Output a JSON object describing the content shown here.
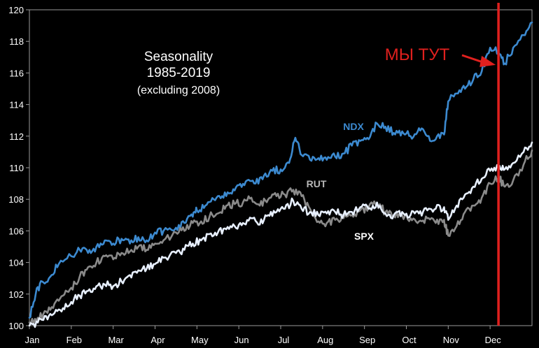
{
  "chart_data": {
    "type": "line",
    "title": "Seasonality",
    "subtitle": "1985-2019",
    "subtitle2": "(excluding 2008)",
    "xlabel": "",
    "ylabel": "",
    "categories": [
      "Jan",
      "Feb",
      "Mar",
      "Apr",
      "May",
      "Jun",
      "Jul",
      "Aug",
      "Sep",
      "Oct",
      "Nov",
      "Dec"
    ],
    "ylim": [
      100,
      120
    ],
    "yticks": [
      100,
      102,
      104,
      106,
      108,
      110,
      112,
      114,
      116,
      118,
      120
    ],
    "grid": false,
    "legend": "none",
    "series": [
      {
        "name": "NDX",
        "color": "#3c8ad0",
        "points": [
          [
            0.0,
            100.5
          ],
          [
            0.15,
            102.0
          ],
          [
            0.3,
            102.8
          ],
          [
            0.5,
            103.1
          ],
          [
            0.7,
            103.9
          ],
          [
            1.0,
            104.4
          ],
          [
            1.2,
            104.8
          ],
          [
            1.4,
            104.6
          ],
          [
            1.6,
            105.0
          ],
          [
            1.8,
            105.4
          ],
          [
            2.0,
            105.2
          ],
          [
            2.2,
            105.5
          ],
          [
            2.4,
            105.2
          ],
          [
            2.6,
            105.6
          ],
          [
            2.8,
            105.4
          ],
          [
            3.0,
            105.9
          ],
          [
            3.2,
            106.0
          ],
          [
            3.5,
            106.2
          ],
          [
            3.7,
            106.5
          ],
          [
            3.9,
            106.9
          ],
          [
            4.0,
            107.3
          ],
          [
            4.2,
            107.6
          ],
          [
            4.4,
            108.0
          ],
          [
            4.6,
            108.2
          ],
          [
            4.8,
            108.4
          ],
          [
            5.0,
            108.9
          ],
          [
            5.2,
            109.2
          ],
          [
            5.4,
            109.0
          ],
          [
            5.6,
            109.5
          ],
          [
            5.8,
            109.8
          ],
          [
            6.0,
            109.9
          ],
          [
            6.2,
            110.3
          ],
          [
            6.35,
            111.9
          ],
          [
            6.5,
            110.8
          ],
          [
            6.7,
            110.5
          ],
          [
            6.9,
            110.6
          ],
          [
            7.1,
            110.5
          ],
          [
            7.3,
            110.7
          ],
          [
            7.5,
            110.9
          ],
          [
            7.7,
            111.4
          ],
          [
            7.9,
            111.7
          ],
          [
            8.1,
            111.8
          ],
          [
            8.3,
            112.8
          ],
          [
            8.5,
            112.6
          ],
          [
            8.7,
            112.2
          ],
          [
            8.9,
            112.3
          ],
          [
            9.1,
            112.0
          ],
          [
            9.3,
            112.5
          ],
          [
            9.5,
            112.0
          ],
          [
            9.7,
            111.8
          ],
          [
            9.9,
            112.1
          ],
          [
            10.0,
            114.2
          ],
          [
            10.2,
            114.7
          ],
          [
            10.4,
            115.0
          ],
          [
            10.6,
            115.6
          ],
          [
            10.8,
            116.1
          ],
          [
            11.0,
            117.6
          ],
          [
            11.2,
            117.3
          ],
          [
            11.35,
            116.6
          ],
          [
            11.55,
            117.6
          ],
          [
            11.8,
            118.4
          ],
          [
            12.0,
            119.2
          ]
        ]
      },
      {
        "name": "RUT",
        "color": "#8a8a8a",
        "points": [
          [
            0.0,
            100.2
          ],
          [
            0.2,
            100.5
          ],
          [
            0.4,
            100.9
          ],
          [
            0.6,
            101.4
          ],
          [
            0.8,
            101.9
          ],
          [
            1.0,
            102.4
          ],
          [
            1.2,
            103.1
          ],
          [
            1.4,
            103.7
          ],
          [
            1.6,
            104.0
          ],
          [
            1.8,
            104.4
          ],
          [
            2.0,
            104.2
          ],
          [
            2.2,
            104.6
          ],
          [
            2.4,
            104.7
          ],
          [
            2.6,
            105.0
          ],
          [
            2.8,
            104.8
          ],
          [
            3.0,
            105.2
          ],
          [
            3.2,
            105.4
          ],
          [
            3.5,
            105.9
          ],
          [
            3.7,
            106.0
          ],
          [
            3.9,
            106.5
          ],
          [
            4.1,
            106.6
          ],
          [
            4.3,
            106.9
          ],
          [
            4.5,
            107.1
          ],
          [
            4.7,
            107.6
          ],
          [
            4.9,
            107.7
          ],
          [
            5.1,
            107.8
          ],
          [
            5.3,
            108.1
          ],
          [
            5.5,
            107.6
          ],
          [
            5.7,
            108.0
          ],
          [
            5.9,
            108.2
          ],
          [
            6.1,
            108.3
          ],
          [
            6.3,
            108.6
          ],
          [
            6.5,
            108.2
          ],
          [
            6.7,
            107.4
          ],
          [
            6.9,
            106.6
          ],
          [
            7.1,
            106.5
          ],
          [
            7.3,
            106.7
          ],
          [
            7.5,
            106.8
          ],
          [
            7.7,
            107.0
          ],
          [
            7.9,
            107.3
          ],
          [
            8.1,
            107.5
          ],
          [
            8.3,
            107.7
          ],
          [
            8.5,
            107.2
          ],
          [
            8.7,
            107.0
          ],
          [
            8.9,
            107.0
          ],
          [
            9.1,
            106.8
          ],
          [
            9.3,
            106.6
          ],
          [
            9.5,
            106.8
          ],
          [
            9.7,
            106.5
          ],
          [
            9.9,
            106.7
          ],
          [
            10.0,
            105.7
          ],
          [
            10.2,
            106.3
          ],
          [
            10.4,
            107.2
          ],
          [
            10.6,
            107.6
          ],
          [
            10.8,
            108.1
          ],
          [
            11.0,
            109.0
          ],
          [
            11.2,
            109.4
          ],
          [
            11.35,
            108.8
          ],
          [
            11.55,
            109.2
          ],
          [
            11.8,
            110.2
          ],
          [
            12.0,
            111.1
          ]
        ]
      },
      {
        "name": "SPX",
        "color": "#e8f0ff",
        "points": [
          [
            0.0,
            100.0
          ],
          [
            0.2,
            100.2
          ],
          [
            0.4,
            100.6
          ],
          [
            0.6,
            100.8
          ],
          [
            0.8,
            101.1
          ],
          [
            1.0,
            101.5
          ],
          [
            1.2,
            101.9
          ],
          [
            1.4,
            102.2
          ],
          [
            1.6,
            102.5
          ],
          [
            1.8,
            102.6
          ],
          [
            2.0,
            102.5
          ],
          [
            2.2,
            102.8
          ],
          [
            2.4,
            103.2
          ],
          [
            2.6,
            103.5
          ],
          [
            2.8,
            103.6
          ],
          [
            3.0,
            103.9
          ],
          [
            3.2,
            104.3
          ],
          [
            3.5,
            104.6
          ],
          [
            3.7,
            104.8
          ],
          [
            3.9,
            105.2
          ],
          [
            4.1,
            105.4
          ],
          [
            4.3,
            105.8
          ],
          [
            4.5,
            105.9
          ],
          [
            4.7,
            106.1
          ],
          [
            4.9,
            106.3
          ],
          [
            5.1,
            106.5
          ],
          [
            5.3,
            106.8
          ],
          [
            5.5,
            106.4
          ],
          [
            5.7,
            107.0
          ],
          [
            5.9,
            107.2
          ],
          [
            6.1,
            107.4
          ],
          [
            6.3,
            107.9
          ],
          [
            6.5,
            107.4
          ],
          [
            6.7,
            107.2
          ],
          [
            6.9,
            107.0
          ],
          [
            7.1,
            107.1
          ],
          [
            7.3,
            107.2
          ],
          [
            7.5,
            107.0
          ],
          [
            7.7,
            107.2
          ],
          [
            7.9,
            107.5
          ],
          [
            8.1,
            107.4
          ],
          [
            8.3,
            107.8
          ],
          [
            8.5,
            107.1
          ],
          [
            8.7,
            107.0
          ],
          [
            8.9,
            107.2
          ],
          [
            9.1,
            107.0
          ],
          [
            9.3,
            107.1
          ],
          [
            9.5,
            107.3
          ],
          [
            9.7,
            107.4
          ],
          [
            9.9,
            107.5
          ],
          [
            10.0,
            106.7
          ],
          [
            10.2,
            107.6
          ],
          [
            10.4,
            108.3
          ],
          [
            10.6,
            108.8
          ],
          [
            10.8,
            109.3
          ],
          [
            11.0,
            109.8
          ],
          [
            11.2,
            110.1
          ],
          [
            11.35,
            109.9
          ],
          [
            11.55,
            110.3
          ],
          [
            11.8,
            111.0
          ],
          [
            12.0,
            111.6
          ]
        ]
      }
    ],
    "annotations": [
      {
        "text": "МЫ ТУТ",
        "color": "#e0201e",
        "marker_x": 11.35,
        "arrow_target_y": 116.6
      }
    ]
  }
}
